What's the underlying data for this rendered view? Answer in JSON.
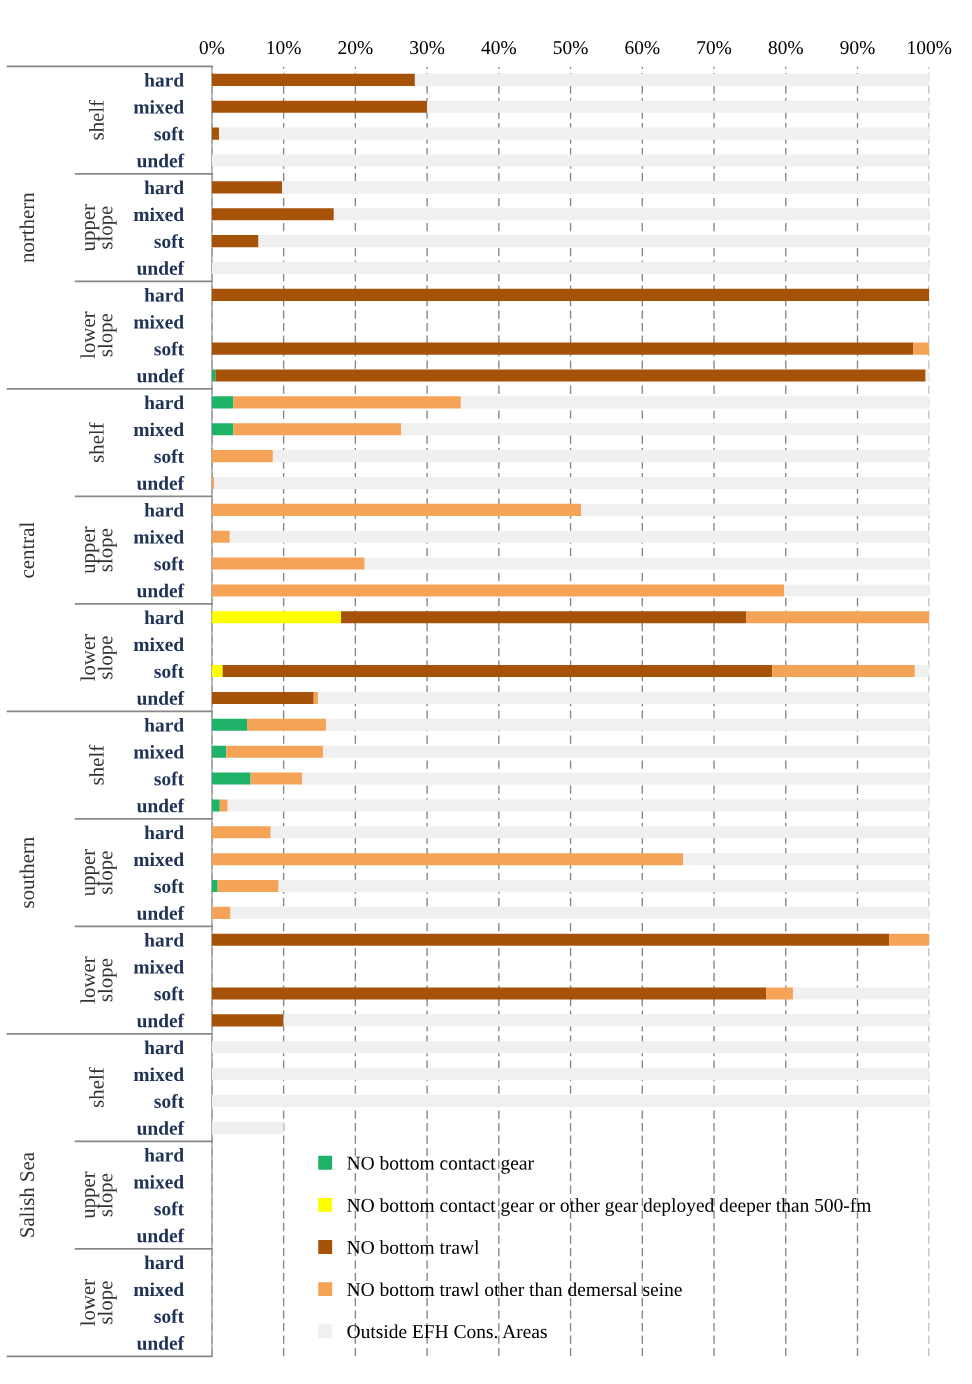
{
  "chart_data": {
    "type": "bar",
    "orientation": "horizontal",
    "stacked": true,
    "categories": [
      "hard",
      "mixed",
      "soft",
      "undef",
      "hard",
      "mixed",
      "soft",
      "undef",
      "hard",
      "mixed",
      "soft",
      "undef",
      "hard",
      "mixed",
      "soft",
      "undef",
      "hard",
      "mixed",
      "soft",
      "undef",
      "hard",
      "mixed",
      "soft",
      "undef",
      "hard",
      "mixed",
      "soft",
      "undef",
      "hard",
      "mixed",
      "soft",
      "undef",
      "hard",
      "mixed",
      "soft",
      "undef",
      "hard",
      "mixed",
      "soft",
      "undef",
      "hard",
      "mixed",
      "soft",
      "undef",
      "hard",
      "mixed",
      "soft",
      "undef"
    ],
    "series": [
      {
        "name": "NO bottom contact gear",
        "color": "#1fb36a",
        "values": [
          0,
          0,
          0,
          0,
          0,
          0,
          0,
          0,
          0,
          null,
          0,
          0.5,
          3,
          3,
          0,
          0,
          0,
          0,
          0,
          0,
          0,
          null,
          0,
          0,
          4.9,
          2,
          5.4,
          1.1,
          0,
          0,
          0.8,
          0,
          0,
          null,
          0,
          0,
          0,
          0,
          0,
          0,
          null,
          null,
          null,
          null,
          null,
          null,
          null,
          null
        ]
      },
      {
        "name": "NO bottom contact gear or other gear deployed deeper than 500-fm",
        "color": "#ffff00",
        "values": [
          0,
          0,
          0,
          0,
          0,
          0,
          0,
          0,
          0,
          null,
          0,
          0,
          0,
          0,
          0,
          0,
          0,
          0,
          0,
          0,
          18,
          null,
          1.5,
          0,
          0,
          0,
          0,
          0,
          0,
          0,
          0,
          0,
          0,
          null,
          0,
          0,
          0,
          0,
          0,
          0,
          null,
          null,
          null,
          null,
          null,
          null,
          null,
          null
        ]
      },
      {
        "name": "NO bottom trawl",
        "color": "#a65309",
        "values": [
          28.3,
          30,
          1,
          0,
          9.8,
          17,
          6.5,
          0,
          100,
          null,
          97.8,
          99,
          0,
          0,
          0,
          0,
          0,
          0,
          0,
          0,
          56.5,
          null,
          76.6,
          14.2,
          0,
          0,
          0,
          0,
          0,
          0,
          0,
          0,
          94.4,
          null,
          77.3,
          10,
          0,
          0,
          0,
          0,
          null,
          null,
          null,
          null,
          null,
          null,
          null,
          null
        ]
      },
      {
        "name": "NO bottom trawl other than demersal seine",
        "color": "#f5a356",
        "values": [
          0,
          0,
          0,
          0,
          0,
          0,
          0,
          0,
          0,
          null,
          2.2,
          0,
          31.7,
          23.4,
          8.5,
          0.3,
          51.5,
          2.5,
          21.3,
          79.8,
          25.5,
          null,
          19.9,
          0.6,
          11,
          13.5,
          7.2,
          1.1,
          8.2,
          65.7,
          8.5,
          2.6,
          5.6,
          null,
          3.7,
          0,
          0,
          0,
          0,
          0,
          null,
          null,
          null,
          null,
          null,
          null,
          null,
          null
        ]
      },
      {
        "name": "Outside EFH Cons. Areas",
        "color": "#f0f0f0",
        "values": [
          71.7,
          70,
          99,
          100,
          90.2,
          83,
          93.5,
          100,
          0,
          null,
          0,
          0.5,
          65.3,
          73.6,
          91.5,
          99.7,
          48.5,
          97.5,
          78.7,
          20.2,
          0,
          null,
          2,
          85.2,
          84.1,
          84.5,
          87.4,
          97.8,
          91.8,
          34.3,
          90.7,
          97.4,
          0,
          null,
          19,
          90,
          100,
          100,
          100,
          10,
          null,
          null,
          null,
          null,
          null,
          null,
          null,
          null
        ]
      }
    ],
    "xlim": [
      0,
      100
    ],
    "xticks": [
      {
        "value": 0,
        "label": "0%"
      },
      {
        "value": 10,
        "label": "10%"
      },
      {
        "value": 20,
        "label": "20%"
      },
      {
        "value": 30,
        "label": "30%"
      },
      {
        "value": 40,
        "label": "40%"
      },
      {
        "value": 50,
        "label": "50%"
      },
      {
        "value": 60,
        "label": "60%"
      },
      {
        "value": 70,
        "label": "70%"
      },
      {
        "value": 80,
        "label": "80%"
      },
      {
        "value": 90,
        "label": "90%"
      },
      {
        "value": 100,
        "label": "100%"
      }
    ],
    "grid": "x",
    "legend": "bottom right",
    "annotations": [
      "northern",
      "shelf",
      "upper slope",
      "lower slope",
      "central",
      "shelf",
      "upper slope",
      "lower slope",
      "southern",
      "shelf",
      "upper slope",
      "lower slope",
      "Salish Sea",
      "shelf",
      "upper slope",
      "lower slope"
    ]
  }
}
